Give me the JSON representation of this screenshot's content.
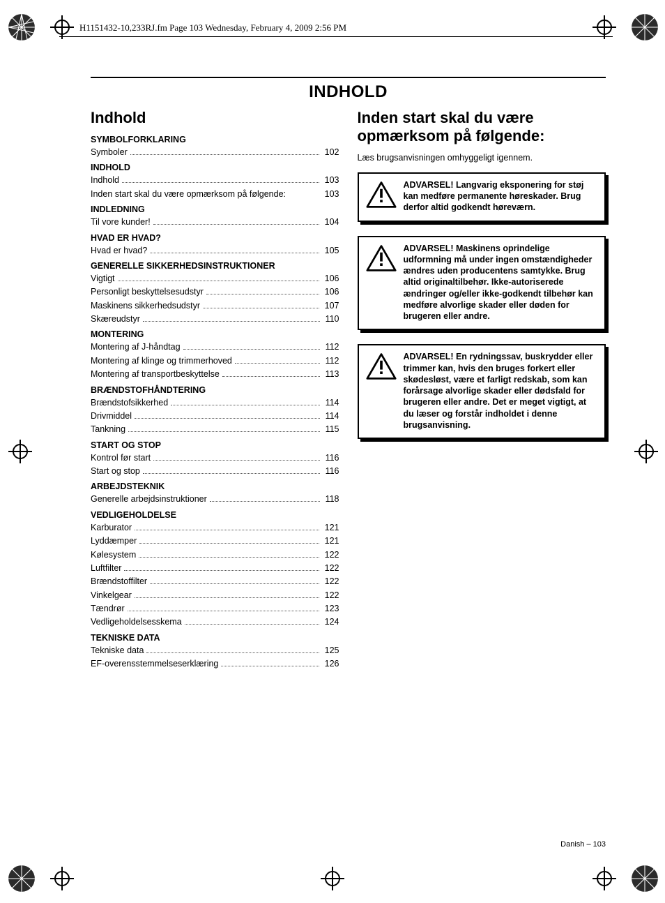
{
  "header_note": "H1151432-10,233RJ.fm  Page 103  Wednesday, February 4, 2009  2:56 PM",
  "page_title": "INDHOLD",
  "left_heading": "Indhold",
  "right_heading": "Inden start skal du være opmærksom på følgende:",
  "right_intro": "Læs brugsanvisningen omhyggeligt igennem.",
  "footer": "Danish – 103",
  "toc": [
    {
      "type": "section",
      "label": "SYMBOLFORKLARING"
    },
    {
      "type": "item",
      "label": "Symboler",
      "page": "102"
    },
    {
      "type": "section",
      "label": "INDHOLD"
    },
    {
      "type": "item",
      "label": "Indhold",
      "page": "103"
    },
    {
      "type": "item",
      "label": "Inden start skal du være opmærksom på følgende:",
      "page": "103",
      "nodots": true
    },
    {
      "type": "section",
      "label": "INDLEDNING"
    },
    {
      "type": "item",
      "label": "Til vore kunder!",
      "page": "104"
    },
    {
      "type": "section",
      "label": "HVAD ER HVAD?"
    },
    {
      "type": "item",
      "label": "Hvad er hvad?",
      "page": "105"
    },
    {
      "type": "section",
      "label": "GENERELLE SIKKERHEDSINSTRUKTIONER"
    },
    {
      "type": "item",
      "label": "Vigtigt",
      "page": "106"
    },
    {
      "type": "item",
      "label": "Personligt beskyttelsesudstyr",
      "page": "106"
    },
    {
      "type": "item",
      "label": "Maskinens sikkerhedsudstyr",
      "page": "107"
    },
    {
      "type": "item",
      "label": "Skæreudstyr",
      "page": "110"
    },
    {
      "type": "section",
      "label": "MONTERING"
    },
    {
      "type": "item",
      "label": "Montering af J-håndtag",
      "page": "112"
    },
    {
      "type": "item",
      "label": "Montering af klinge og trimmerhoved",
      "page": "112"
    },
    {
      "type": "item",
      "label": "Montering af transportbeskyttelse",
      "page": "113"
    },
    {
      "type": "section",
      "label": "BRÆNDSTOFHÅNDTERING"
    },
    {
      "type": "item",
      "label": "Brændstofsikkerhed",
      "page": "114"
    },
    {
      "type": "item",
      "label": "Drivmiddel",
      "page": "114"
    },
    {
      "type": "item",
      "label": "Tankning",
      "page": "115"
    },
    {
      "type": "section",
      "label": "START OG STOP"
    },
    {
      "type": "item",
      "label": "Kontrol før start",
      "page": "116"
    },
    {
      "type": "item",
      "label": "Start og stop",
      "page": "116"
    },
    {
      "type": "section",
      "label": "ARBEJDSTEKNIK"
    },
    {
      "type": "item",
      "label": "Generelle arbejdsinstruktioner",
      "page": "118"
    },
    {
      "type": "section",
      "label": "VEDLIGEHOLDELSE"
    },
    {
      "type": "item",
      "label": "Karburator",
      "page": "121"
    },
    {
      "type": "item",
      "label": "Lyddæmper",
      "page": "121"
    },
    {
      "type": "item",
      "label": "Kølesystem",
      "page": "122"
    },
    {
      "type": "item",
      "label": "Luftfilter",
      "page": "122"
    },
    {
      "type": "item",
      "label": "Brændstoffilter",
      "page": "122"
    },
    {
      "type": "item",
      "label": "Vinkelgear",
      "page": "122"
    },
    {
      "type": "item",
      "label": "Tændrør",
      "page": "123"
    },
    {
      "type": "item",
      "label": "Vedligeholdelsesskema",
      "page": "124"
    },
    {
      "type": "section",
      "label": "TEKNISKE DATA"
    },
    {
      "type": "item",
      "label": "Tekniske data",
      "page": "125"
    },
    {
      "type": "item",
      "label": "EF-overensstemmelseserklæring",
      "page": "126"
    }
  ],
  "warnings": [
    "ADVARSEL! Langvarig eksponering for støj kan medføre permanente høreskader. Brug derfor altid godkendt høreværn.",
    "ADVARSEL! Maskinens oprindelige udformning må under ingen omstændigheder ændres uden producentens samtykke. Brug altid originaltilbehør. Ikke-autoriserede ændringer og/eller ikke-godkendt tilbehør kan medføre alvorlige skader eller døden for brugeren eller andre.",
    "ADVARSEL! En rydningssav, buskrydder eller trimmer kan, hvis den bruges forkert eller skødesløst, være et farligt redskab, som kan forårsage alvorlige skader eller dødsfald for brugeren eller andre. Det er meget vigtigt, at du læser og forstår indholdet i denne brugsanvisning."
  ]
}
